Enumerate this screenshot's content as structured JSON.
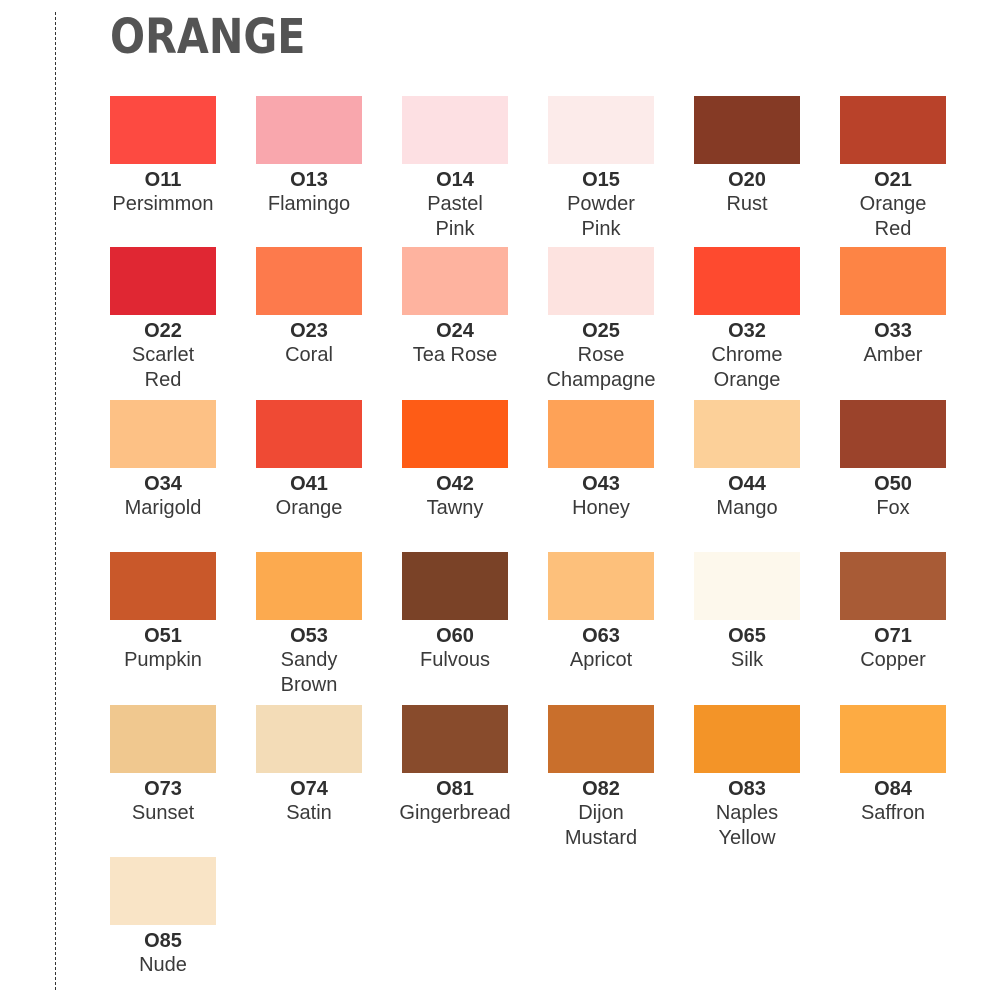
{
  "title": "ORANGE",
  "swatches": [
    {
      "code": "O11",
      "name": "Persimmon",
      "color": "#fd4a41"
    },
    {
      "code": "O13",
      "name": "Flamingo",
      "color": "#f9a7ad"
    },
    {
      "code": "O14",
      "name": "Pastel\nPink",
      "color": "#fde0e3"
    },
    {
      "code": "O15",
      "name": "Powder\nPink",
      "color": "#fcebea"
    },
    {
      "code": "O20",
      "name": "Rust",
      "color": "#853a25"
    },
    {
      "code": "O21",
      "name": "Orange\nRed",
      "color": "#b9422a"
    },
    {
      "code": "O22",
      "name": "Scarlet\nRed",
      "color": "#e02733"
    },
    {
      "code": "O23",
      "name": "Coral",
      "color": "#fd7a4c"
    },
    {
      "code": "O24",
      "name": "Tea Rose",
      "color": "#feb39f"
    },
    {
      "code": "O25",
      "name": "Rose\nChampagne",
      "color": "#fde3e0"
    },
    {
      "code": "O32",
      "name": "Chrome\nOrange",
      "color": "#fe4a2f"
    },
    {
      "code": "O33",
      "name": "Amber",
      "color": "#fd8445"
    },
    {
      "code": "O34",
      "name": "Marigold",
      "color": "#fdc185"
    },
    {
      "code": "O41",
      "name": "Orange",
      "color": "#ef4a34"
    },
    {
      "code": "O42",
      "name": "Tawny",
      "color": "#fe5c16"
    },
    {
      "code": "O43",
      "name": "Honey",
      "color": "#fea257"
    },
    {
      "code": "O44",
      "name": "Mango",
      "color": "#fcd099"
    },
    {
      "code": "O50",
      "name": "Fox",
      "color": "#9b432b"
    },
    {
      "code": "O51",
      "name": "Pumpkin",
      "color": "#c9582a"
    },
    {
      "code": "O53",
      "name": "Sandy\nBrown",
      "color": "#fcaa4f"
    },
    {
      "code": "O60",
      "name": "Fulvous",
      "color": "#7a4227"
    },
    {
      "code": "O63",
      "name": "Apricot",
      "color": "#fdc07b"
    },
    {
      "code": "O65",
      "name": "Silk",
      "color": "#fdf8ec"
    },
    {
      "code": "O71",
      "name": "Copper",
      "color": "#a85b36"
    },
    {
      "code": "O73",
      "name": "Sunset",
      "color": "#f0c88f"
    },
    {
      "code": "O74",
      "name": "Satin",
      "color": "#f3dcb7"
    },
    {
      "code": "O81",
      "name": "Gingerbread",
      "color": "#884b2c"
    },
    {
      "code": "O82",
      "name": "Dijon\nMustard",
      "color": "#c96f2c"
    },
    {
      "code": "O83",
      "name": "Naples\nYellow",
      "color": "#f39428"
    },
    {
      "code": "O84",
      "name": "Saffron",
      "color": "#fdab43"
    },
    {
      "code": "O85",
      "name": "Nude",
      "color": "#f9e4c6"
    }
  ]
}
